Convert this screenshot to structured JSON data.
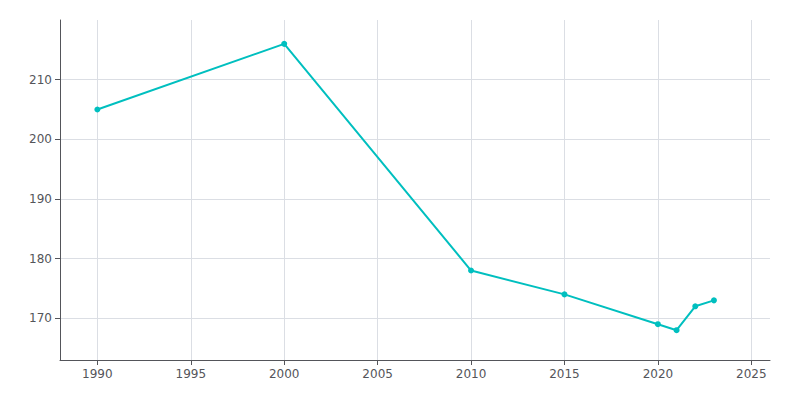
{
  "chart_data": {
    "type": "line",
    "x": [
      1990,
      2000,
      2010,
      2015,
      2020,
      2021,
      2022,
      2023
    ],
    "values": [
      205,
      216,
      178,
      174,
      169,
      168,
      172,
      173
    ],
    "color": "#00BFBF",
    "marker": "circle",
    "xlim": [
      1988,
      2026
    ],
    "ylim": [
      163,
      220
    ],
    "xticks": [
      1990,
      1995,
      2000,
      2005,
      2010,
      2015,
      2020,
      2025
    ],
    "yticks": [
      170,
      180,
      190,
      200,
      210
    ],
    "grid": true
  }
}
